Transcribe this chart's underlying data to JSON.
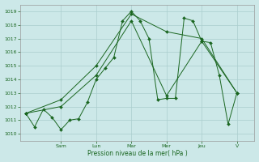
{
  "xlabel": "Pression niveau de la mer( hPa )",
  "background_color": "#cce8e8",
  "grid_color": "#aacece",
  "line_color": "#1a6620",
  "ylim": [
    1009.5,
    1019.5
  ],
  "yticks": [
    1010,
    1011,
    1012,
    1013,
    1014,
    1015,
    1016,
    1017,
    1018,
    1019
  ],
  "xlim": [
    -0.3,
    13.0
  ],
  "xtick_positions": [
    2,
    4,
    6,
    8,
    10,
    12
  ],
  "xtick_labels": [
    "Sam",
    "Lun",
    "Mar",
    "Mer",
    "Jeu",
    "V"
  ],
  "line1_x": [
    0,
    0.5,
    1.0,
    1.5,
    2.0,
    2.5,
    3.0,
    3.5,
    4.0,
    4.5,
    5.0,
    5.5,
    6.0,
    6.5,
    7.0,
    7.5,
    8.0,
    8.5,
    9.0,
    9.5,
    10.0,
    10.5,
    11.0,
    11.5,
    12.0
  ],
  "line1_y": [
    1011.5,
    1010.5,
    1011.8,
    1011.2,
    1010.3,
    1011.0,
    1011.1,
    1012.3,
    1014.0,
    1014.8,
    1015.6,
    1018.3,
    1019.0,
    1018.3,
    1017.0,
    1012.5,
    1012.6,
    1012.6,
    1018.5,
    1018.3,
    1016.8,
    1016.7,
    1014.3,
    1010.7,
    1013.0
  ],
  "line2_x": [
    0,
    2,
    4,
    6,
    8,
    10,
    12
  ],
  "line2_y": [
    1011.5,
    1012.0,
    1014.3,
    1018.3,
    1012.8,
    1016.8,
    1013.0
  ],
  "line3_x": [
    0,
    2,
    4,
    6,
    8,
    10,
    12
  ],
  "line3_y": [
    1011.5,
    1012.5,
    1015.0,
    1018.8,
    1017.5,
    1017.0,
    1013.0
  ]
}
